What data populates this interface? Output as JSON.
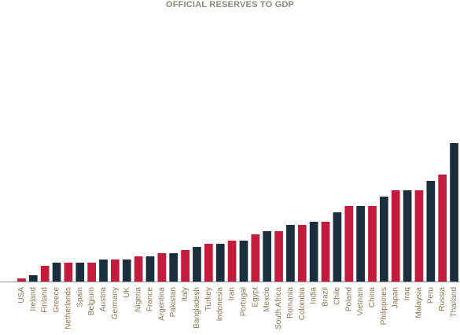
{
  "colors": {
    "navy": "#1a2e3d",
    "red": "#c41a3b",
    "axis": "#8f9a9e",
    "title": "#8a8a78",
    "label": "#8a7a56"
  },
  "chart_data": {
    "type": "bar",
    "title": "OFFICIAL RESERVES TO GDP",
    "xlabel": "",
    "ylabel": "",
    "grid": false,
    "legend": "none",
    "ylim": [
      0,
      43
    ],
    "categories": [
      "USA",
      "Ireland",
      "Finland",
      "Greece",
      "Netherlands",
      "Spain",
      "Belgium",
      "Austria",
      "Germany",
      "UK",
      "Nigeria",
      "France",
      "Argentina",
      "Pakistan",
      "Italy",
      "Bangladesh",
      "Turkey",
      "Indonesia",
      "Iran",
      "Portugal",
      "Egypt",
      "Mexcio",
      "South Africa",
      "Romania",
      "Colombia",
      "India",
      "Brazil",
      "Chile",
      "Poland",
      "Vietnam",
      "China",
      "Philippines",
      "Japan",
      "Iraq",
      "Malaysia",
      "Peru",
      "Russia",
      "Thailand"
    ],
    "values": [
      1,
      2,
      5,
      6,
      6,
      6,
      6,
      7,
      7,
      7,
      8,
      8,
      9,
      9,
      10,
      11,
      12,
      12,
      13,
      13,
      15,
      16,
      16,
      18,
      18,
      19,
      19,
      22,
      24,
      24,
      24,
      27,
      29,
      29,
      29,
      32,
      34,
      44
    ],
    "bar_colors": [
      "red",
      "navy",
      "red",
      "navy",
      "red",
      "navy",
      "red",
      "navy",
      "red",
      "navy",
      "red",
      "navy",
      "red",
      "navy",
      "red",
      "navy",
      "red",
      "navy",
      "red",
      "navy",
      "red",
      "navy",
      "red",
      "navy",
      "red",
      "navy",
      "red",
      "navy",
      "red",
      "navy",
      "red",
      "navy",
      "red",
      "navy",
      "red",
      "navy",
      "red",
      "navy"
    ]
  }
}
